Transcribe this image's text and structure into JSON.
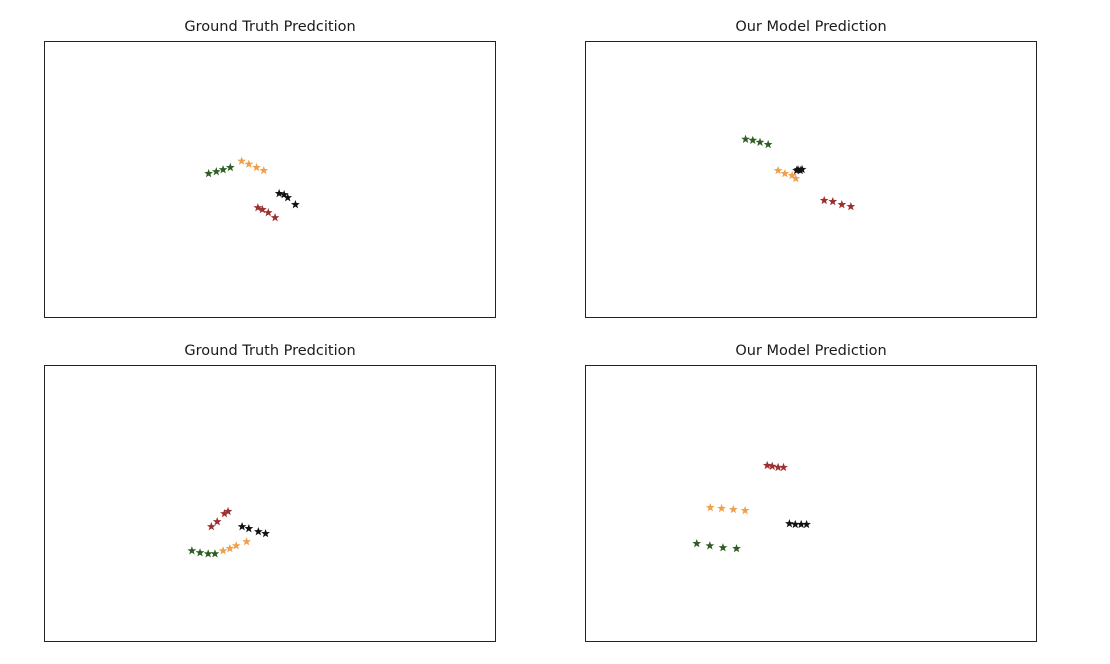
{
  "colors": {
    "green": "#2e5e23",
    "orange": "#f0a04b",
    "black": "#111111",
    "red": "#9c2f2f"
  },
  "chart_data": [
    {
      "type": "scatter",
      "title": "Ground Truth Predcition",
      "grid": false,
      "marker": "star",
      "xlim": [
        0,
        100
      ],
      "ylim": [
        0,
        100
      ],
      "series": [
        {
          "color_key": "green",
          "points": [
            [
              36.2,
              52.5
            ],
            [
              37.9,
              53.2
            ],
            [
              39.4,
              53.9
            ],
            [
              41.0,
              54.7
            ]
          ]
        },
        {
          "color_key": "orange",
          "points": [
            [
              43.5,
              57.0
            ],
            [
              45.1,
              55.9
            ],
            [
              46.8,
              54.7
            ],
            [
              48.4,
              53.6
            ]
          ]
        },
        {
          "color_key": "black",
          "points": [
            [
              51.8,
              45.3
            ],
            [
              52.9,
              44.9
            ],
            [
              53.7,
              43.8
            ],
            [
              55.4,
              41.3
            ]
          ]
        },
        {
          "color_key": "red",
          "points": [
            [
              47.1,
              40.2
            ],
            [
              48.1,
              39.5
            ],
            [
              49.4,
              38.4
            ],
            [
              50.9,
              36.6
            ]
          ]
        }
      ]
    },
    {
      "type": "scatter",
      "title": "Our Model Prediction",
      "grid": false,
      "marker": "star",
      "xlim": [
        0,
        100
      ],
      "ylim": [
        0,
        100
      ],
      "series": [
        {
          "color_key": "green",
          "points": [
            [
              35.3,
              64.9
            ],
            [
              36.9,
              64.5
            ],
            [
              38.5,
              63.8
            ],
            [
              40.3,
              63.0
            ]
          ]
        },
        {
          "color_key": "orange",
          "points": [
            [
              42.5,
              53.6
            ],
            [
              44.0,
              52.5
            ],
            [
              45.6,
              51.8
            ],
            [
              46.4,
              50.7
            ]
          ]
        },
        {
          "color_key": "black",
          "points": [
            [
              46.6,
              53.6
            ],
            [
              47.4,
              53.6
            ],
            [
              47.8,
              54.0
            ],
            [
              46.9,
              53.9
            ]
          ]
        },
        {
          "color_key": "red",
          "points": [
            [
              52.7,
              42.8
            ],
            [
              54.6,
              42.4
            ],
            [
              56.6,
              41.3
            ],
            [
              58.6,
              40.6
            ]
          ]
        }
      ]
    },
    {
      "type": "scatter",
      "title": "Ground Truth Predcition",
      "grid": false,
      "marker": "star",
      "xlim": [
        0,
        100
      ],
      "ylim": [
        0,
        100
      ],
      "series": [
        {
          "color_key": "green",
          "points": [
            [
              32.5,
              33.3
            ],
            [
              34.3,
              32.6
            ],
            [
              36.1,
              32.2
            ],
            [
              37.6,
              32.2
            ]
          ]
        },
        {
          "color_key": "orange",
          "points": [
            [
              39.4,
              33.3
            ],
            [
              40.9,
              34.1
            ],
            [
              42.3,
              35.1
            ],
            [
              44.6,
              36.6
            ]
          ]
        },
        {
          "color_key": "black",
          "points": [
            [
              43.6,
              42.0
            ],
            [
              45.1,
              41.3
            ],
            [
              47.2,
              40.2
            ],
            [
              48.8,
              39.5
            ]
          ]
        },
        {
          "color_key": "red",
          "points": [
            [
              36.8,
              42.0
            ],
            [
              38.1,
              43.8
            ],
            [
              39.7,
              46.7
            ],
            [
              40.5,
              47.5
            ]
          ]
        }
      ]
    },
    {
      "type": "scatter",
      "title": "Our Model Prediction",
      "grid": false,
      "marker": "star",
      "xlim": [
        0,
        100
      ],
      "ylim": [
        0,
        100
      ],
      "series": [
        {
          "color_key": "green",
          "points": [
            [
              24.5,
              35.9
            ],
            [
              27.4,
              35.1
            ],
            [
              30.3,
              34.4
            ],
            [
              33.3,
              34.1
            ]
          ]
        },
        {
          "color_key": "orange",
          "points": [
            [
              27.5,
              48.9
            ],
            [
              30.0,
              48.6
            ],
            [
              32.6,
              48.2
            ],
            [
              35.2,
              47.8
            ]
          ]
        },
        {
          "color_key": "black",
          "points": [
            [
              45.0,
              43.1
            ],
            [
              46.3,
              42.8
            ],
            [
              47.6,
              42.8
            ],
            [
              48.8,
              42.8
            ]
          ]
        },
        {
          "color_key": "red",
          "points": [
            [
              40.1,
              64.1
            ],
            [
              41.2,
              63.8
            ],
            [
              42.5,
              63.4
            ],
            [
              43.7,
              63.4
            ]
          ]
        }
      ]
    }
  ]
}
